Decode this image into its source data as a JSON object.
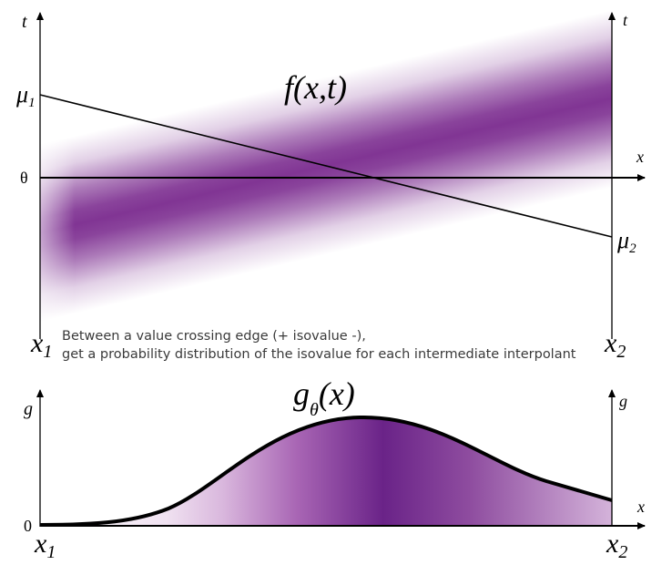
{
  "top_panel": {
    "axis_t_left": "t",
    "axis_t_right": "t",
    "axis_x": "x",
    "mu1": "μ",
    "mu1_sub": "1",
    "mu2": "μ",
    "mu2_sub": "2",
    "theta": "θ",
    "function_label": "f(x,t)",
    "x1": "x",
    "x1_sub": "1",
    "x2": "x",
    "x2_sub": "2"
  },
  "caption": {
    "line1": "Between a value crossing edge (+ isovalue -),",
    "line2": "get a probability distribution of the isovalue for each intermediate interpolant"
  },
  "bottom_panel": {
    "axis_g_left": "g",
    "axis_g_right": "g",
    "axis_x": "x",
    "zero": "0",
    "function_main": "g",
    "function_sub": "θ",
    "function_arg": "(x)",
    "x1": "x",
    "x1_sub": "1",
    "x2": "x",
    "x2_sub": "2"
  },
  "colors": {
    "band": "#7a2a8e",
    "fill_dark": "#6a2388",
    "fill_light": "#e9d3ec",
    "stroke": "#000000",
    "caption_text": "#3a3a3a"
  }
}
